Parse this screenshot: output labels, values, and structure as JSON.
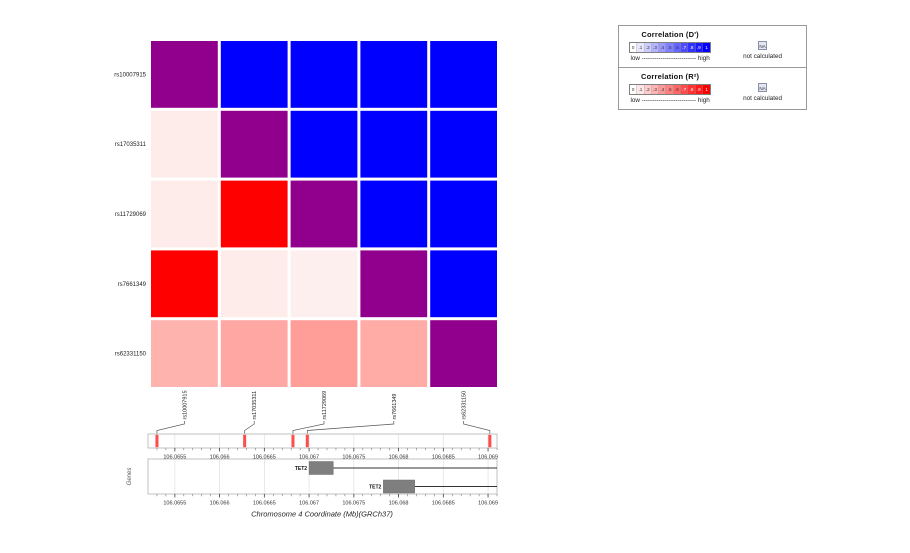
{
  "figure": {
    "background": "#FFFFFF"
  },
  "chart_data": {
    "type": "heatmap",
    "title": "",
    "snps": [
      "rs10007915",
      "rs17035311",
      "rs11729069",
      "rs7661349",
      "rs62331150"
    ],
    "snp_positions_mb": [
      106.0653,
      106.06628,
      106.06682,
      106.06698,
      106.06902
    ],
    "matrix_colors": [
      [
        "#91008C",
        "#0000FF",
        "#0000FF",
        "#0000FF",
        "#0000FF"
      ],
      [
        "#FDECEA",
        "#91008C",
        "#0000FF",
        "#0000FF",
        "#0000FF"
      ],
      [
        "#FDECEA",
        "#FF0000",
        "#91008C",
        "#0000FF",
        "#0000FF"
      ],
      [
        "#FF0000",
        "#FDECEA",
        "#FDEFED",
        "#91008C",
        "#0000FF"
      ],
      [
        "#FFB3AE",
        "#FFA7A2",
        "#FF9E99",
        "#FFACA7",
        "#91008C"
      ]
    ],
    "upper_triangle_metric": "D'",
    "lower_triangle_metric": "R²",
    "x_axis": {
      "label": "Chromosome 4 Coordinate (Mb)(GRCh37)",
      "range_mb": [
        106.0652,
        106.0691
      ],
      "major_ticks": [
        106.0655,
        106.066,
        106.0665,
        106.067,
        106.0675,
        106.068,
        106.0685,
        106.069
      ],
      "tick_labels": [
        "106.0655",
        "106.066",
        "106.0665",
        "106.067",
        "106.0675",
        "106.068",
        "106.0685",
        "106.069"
      ],
      "minor_step_mb": 0.0001
    },
    "snp_track": {
      "marker_color": "#FF4D4D"
    },
    "genes_track": {
      "axis_label": "Genes",
      "gene_color": "#7F7F7F",
      "genes": [
        {
          "name": "TET2",
          "exon_box_mb": [
            106.067,
            106.06727
          ],
          "line_end_mb": 106.0691,
          "row": 0
        },
        {
          "name": "TET2",
          "exon_box_mb": [
            106.06783,
            106.06818
          ],
          "line_end_mb": 106.0691,
          "row": 1
        }
      ]
    },
    "colors": {
      "dprime_high": "#0000FF",
      "r2_high": "#FF0000",
      "diagonal": "#91008C"
    }
  },
  "legend": {
    "sections": [
      {
        "title": "Correlation  (D')",
        "scale_labels": [
          "0",
          ".1",
          ".2",
          ".3",
          ".4",
          ".5",
          ".6",
          ".7",
          ".8",
          ".9",
          "1"
        ],
        "high_color": "#0000FF",
        "low_high": "low -------------------------- high",
        "na_label": "NA",
        "na_note": "not calculated"
      },
      {
        "title": "Correlation  (R²)",
        "scale_labels": [
          "0",
          ".1",
          ".2",
          ".3",
          ".4",
          ".5",
          ".6",
          ".7",
          ".8",
          ".9",
          "1"
        ],
        "high_color": "#FF0000",
        "low_high": "low -------------------------- high",
        "na_label": "NA",
        "na_note": "not calculated"
      }
    ]
  }
}
